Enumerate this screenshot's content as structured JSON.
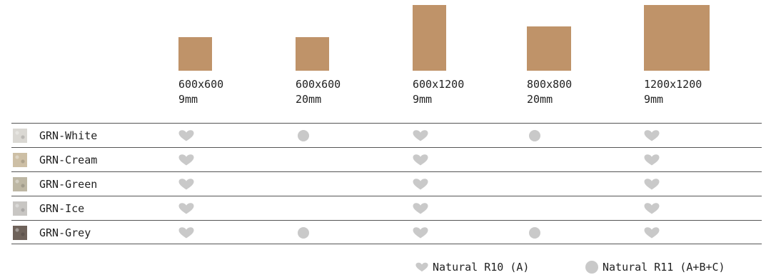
{
  "colors": {
    "tile": "#bf9369",
    "symbol": "#c9c9c9",
    "rule": "#555555"
  },
  "sizes": [
    {
      "dims": "600x600",
      "thickness": "9mm"
    },
    {
      "dims": "600x600",
      "thickness": "20mm"
    },
    {
      "dims": "600x1200",
      "thickness": "9mm"
    },
    {
      "dims": "800x800",
      "thickness": "20mm"
    },
    {
      "dims": "1200x1200",
      "thickness": "9mm"
    }
  ],
  "rows": [
    {
      "name": "GRN-White",
      "swatch": "#dad8d3",
      "cells": [
        "heart",
        "dot",
        "heart",
        "dot",
        "heart"
      ]
    },
    {
      "name": "GRN-Cream",
      "swatch": "#cdbfa5",
      "cells": [
        "heart",
        "",
        "heart",
        "",
        "heart"
      ]
    },
    {
      "name": "GRN-Green",
      "swatch": "#bdb7a4",
      "cells": [
        "heart",
        "",
        "heart",
        "",
        "heart"
      ]
    },
    {
      "name": "GRN-Ice",
      "swatch": "#c8c6c3",
      "cells": [
        "heart",
        "",
        "heart",
        "",
        "heart"
      ]
    },
    {
      "name": "GRN-Grey",
      "swatch": "#6e625a",
      "cells": [
        "heart",
        "dot",
        "heart",
        "dot",
        "heart"
      ]
    }
  ],
  "legend": {
    "heart": {
      "icon": "heart-icon",
      "label": "Natural R10 (A)"
    },
    "dot": {
      "icon": "dot-icon",
      "label": "Natural R11 (A+B+C)"
    }
  }
}
